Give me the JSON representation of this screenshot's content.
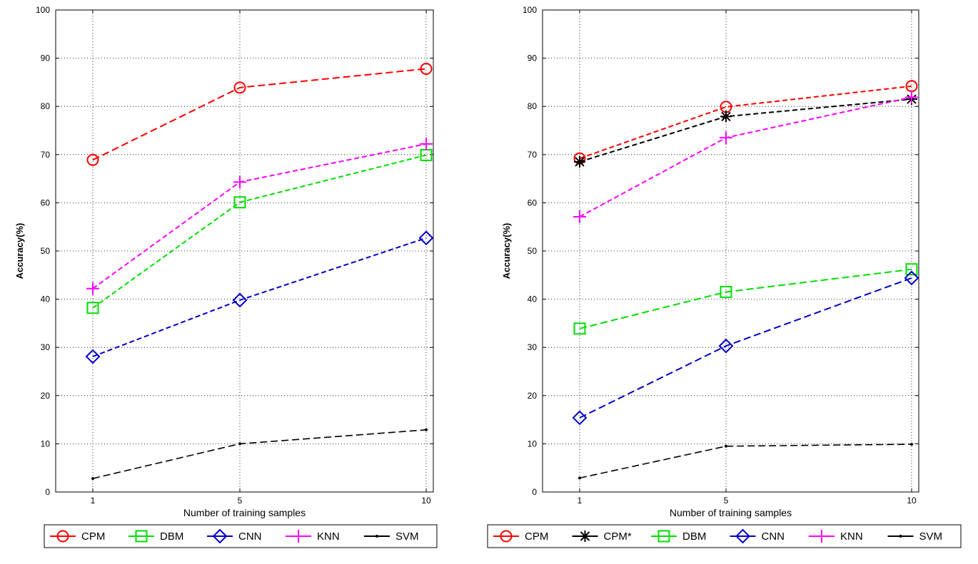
{
  "chart_data": [
    {
      "type": "line",
      "xlabel": "Number of training samples",
      "ylabel": "Accuracy(%)",
      "ylim": [
        0,
        100
      ],
      "yticks": [
        0,
        10,
        20,
        30,
        40,
        50,
        60,
        70,
        80,
        90,
        100
      ],
      "categories": [
        "1",
        "5",
        "10"
      ],
      "grid": true,
      "legend_position": "bottom",
      "series": [
        {
          "name": "CPM",
          "color": "#ff0000",
          "marker": "circle",
          "dash": "long",
          "values": [
            68.9,
            83.9,
            87.8
          ]
        },
        {
          "name": "DBM",
          "color": "#00dd00",
          "marker": "square",
          "dash": "medium",
          "values": [
            38.2,
            60.1,
            69.9
          ]
        },
        {
          "name": "CNN",
          "color": "#0000cc",
          "marker": "diamond",
          "dash": "medium",
          "values": [
            28.1,
            39.8,
            52.7
          ]
        },
        {
          "name": "KNN",
          "color": "#ff00ff",
          "marker": "plus",
          "dash": "medium",
          "values": [
            42.2,
            64.3,
            72.2
          ]
        },
        {
          "name": "SVM",
          "color": "#000000",
          "marker": "dot",
          "dash": "long",
          "values": [
            2.8,
            10.0,
            12.9
          ]
        }
      ]
    },
    {
      "type": "line",
      "xlabel": "Number of training samples",
      "ylabel": "Accuracy(%)",
      "ylim": [
        0,
        100
      ],
      "yticks": [
        0,
        10,
        20,
        30,
        40,
        50,
        60,
        70,
        80,
        90,
        100
      ],
      "categories": [
        "1",
        "5",
        "10"
      ],
      "grid": true,
      "legend_position": "bottom",
      "series": [
        {
          "name": "CPM",
          "color": "#ff0000",
          "marker": "circle",
          "dash": "medium",
          "values": [
            69.2,
            79.9,
            84.2
          ]
        },
        {
          "name": "CPM*",
          "color": "#000000",
          "marker": "star",
          "dash": "medium",
          "values": [
            68.5,
            77.9,
            81.5
          ]
        },
        {
          "name": "DBM",
          "color": "#00dd00",
          "marker": "square",
          "dash": "long",
          "values": [
            33.9,
            41.5,
            46.2
          ]
        },
        {
          "name": "CNN",
          "color": "#0000cc",
          "marker": "diamond",
          "dash": "long",
          "values": [
            15.4,
            30.3,
            44.4
          ]
        },
        {
          "name": "KNN",
          "color": "#ff00ff",
          "marker": "plus",
          "dash": "medium",
          "values": [
            57.1,
            73.5,
            81.9
          ]
        },
        {
          "name": "SVM",
          "color": "#000000",
          "marker": "dot",
          "dash": "long",
          "values": [
            2.9,
            9.5,
            9.9
          ]
        }
      ]
    }
  ]
}
